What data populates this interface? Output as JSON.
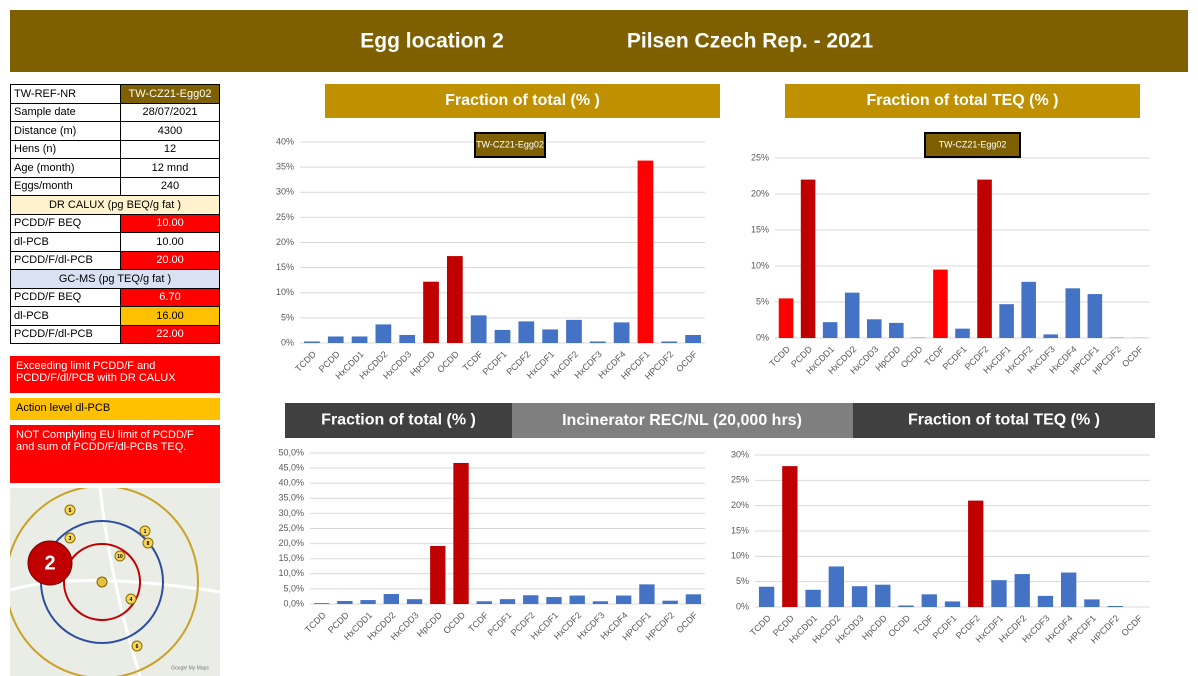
{
  "header": {
    "location": "Egg location 2",
    "place": "Pilsen Czech Rep. - 2021"
  },
  "table": {
    "rows": [
      [
        "TW-REF-NR",
        "TW-CZ21-Egg02"
      ],
      [
        "Sample date",
        "28/07/2021"
      ],
      [
        "Distance (m)",
        "4300"
      ],
      [
        "Hens (n)",
        "12"
      ],
      [
        "Age (month)",
        "12 mnd"
      ],
      [
        "Eggs/month",
        "240"
      ],
      [
        "DR CALUX (pg BEQ/g fat )"
      ],
      [
        "PCDD/F BEQ",
        "10.00"
      ],
      [
        "dl-PCB",
        "10.00"
      ],
      [
        "PCDD/F/dl-PCB",
        "20.00"
      ],
      [
        "GC-MS (pg TEQ/g fat )"
      ],
      [
        "PCDD/F BEQ",
        "6.70"
      ],
      [
        "dl-PCB",
        "16.00"
      ],
      [
        "PCDD/F/dl-PCB",
        "22.00"
      ]
    ]
  },
  "legend": [
    "Exceeding limit PCDD/F and PCDD/F/dl/PCB with DR CALUX",
    "Action level dl-PCB",
    "NOT Complyling EU limit of PCDD/F and sum of  PCDD/F/dl-PCBs TEQ."
  ],
  "map": {
    "location": "2",
    "markers": [
      "5",
      "3",
      "1",
      "8",
      "10",
      "4",
      "6"
    ],
    "credit": "Google My Maps"
  },
  "banner_middle": "Incinerator REC/NL (20,000 hrs)",
  "chart_data": [
    {
      "type": "bar",
      "title": "Fraction of total (% )",
      "annotation": "TW-CZ21-Egg02",
      "categories": [
        "TCDD",
        "PCDD",
        "HxCDD1",
        "HxCDD2",
        "HxCDD3",
        "HpCDD",
        "OCDD",
        "TCDF",
        "PCDF1",
        "PCDF2",
        "HxCDF1",
        "HxCDF2",
        "HxCDF3",
        "HxCDF4",
        "HPCDF1",
        "HPCDF2",
        "OCDF"
      ],
      "values": [
        0.3,
        1.3,
        1.3,
        3.7,
        1.6,
        12.2,
        17.3,
        5.5,
        2.6,
        4.3,
        2.7,
        4.6,
        0.3,
        4.1,
        36.3,
        0.3,
        1.6
      ],
      "colors": [
        "#4472c4",
        "#4472c4",
        "#4472c4",
        "#4472c4",
        "#4472c4",
        "#c00000",
        "#c00000",
        "#4472c4",
        "#4472c4",
        "#4472c4",
        "#4472c4",
        "#4472c4",
        "#4472c4",
        "#4472c4",
        "#ff0000",
        "#4472c4",
        "#4472c4"
      ],
      "ylim": [
        0,
        40
      ],
      "yticks": [
        {
          "value": 0,
          "label": "0%"
        },
        {
          "value": 5,
          "label": "5%"
        },
        {
          "value": 10,
          "label": "10%"
        },
        {
          "value": 15,
          "label": "15%"
        },
        {
          "value": 20,
          "label": "20%"
        },
        {
          "value": 25,
          "label": "25%"
        },
        {
          "value": 30,
          "label": "30%"
        },
        {
          "value": 35,
          "label": "35%"
        },
        {
          "value": 40,
          "label": "40%"
        }
      ],
      "grid": true
    },
    {
      "type": "bar",
      "title": "Fraction of total TEQ (% )",
      "annotation": "TW-CZ21-Egg02",
      "categories": [
        "TCDD",
        "PCDD",
        "HxCDD1",
        "HxCDD2",
        "HxCDD3",
        "HpCDD",
        "OCDD",
        "TCDF",
        "PCDF1",
        "PCDF2",
        "HxCDF1",
        "HxCDF2",
        "HxCDF3",
        "HxCDF4",
        "HPCDF1",
        "HPCDF2",
        "OCDF"
      ],
      "values": [
        5.5,
        22,
        2.2,
        6.3,
        2.6,
        2.1,
        0.05,
        9.5,
        1.3,
        22,
        4.7,
        7.8,
        0.5,
        6.9,
        6.1,
        0.05,
        0.02
      ],
      "colors": [
        "#ff0000",
        "#c00000",
        "#4472c4",
        "#4472c4",
        "#4472c4",
        "#4472c4",
        "#4472c4",
        "#ff0000",
        "#4472c4",
        "#c00000",
        "#4472c4",
        "#4472c4",
        "#4472c4",
        "#4472c4",
        "#4472c4",
        "#4472c4",
        "#4472c4"
      ],
      "ylim": [
        0,
        25
      ],
      "yticks": [
        {
          "value": 0,
          "label": "0%"
        },
        {
          "value": 5,
          "label": "5%"
        },
        {
          "value": 10,
          "label": "10%"
        },
        {
          "value": 15,
          "label": "15%"
        },
        {
          "value": 20,
          "label": "20%"
        },
        {
          "value": 25,
          "label": "25%"
        }
      ],
      "grid": true
    },
    {
      "type": "bar",
      "title": "Fraction of total (% )",
      "categories": [
        "TCDD",
        "PCDD",
        "HxCDD1",
        "HxCDD2",
        "HxCDD3",
        "HpCDD",
        "OCDD",
        "TCDF",
        "PCDF1",
        "PCDF2",
        "HxCDF1",
        "HxCDF2",
        "HxCDF3",
        "HxCDF4",
        "HPCDF1",
        "HPCDF2",
        "OCDF"
      ],
      "values": [
        0.3,
        1,
        1.3,
        3.3,
        1.6,
        19.2,
        46.7,
        0.9,
        1.6,
        2.9,
        2.3,
        2.8,
        0.9,
        2.8,
        6.5,
        1.1,
        3.2
      ],
      "colors": [
        "#4472c4",
        "#4472c4",
        "#4472c4",
        "#4472c4",
        "#4472c4",
        "#c00000",
        "#c00000",
        "#4472c4",
        "#4472c4",
        "#4472c4",
        "#4472c4",
        "#4472c4",
        "#4472c4",
        "#4472c4",
        "#4472c4",
        "#4472c4",
        "#4472c4"
      ],
      "ylim": [
        0,
        50
      ],
      "yticks": [
        {
          "value": 0,
          "label": "0,0%"
        },
        {
          "value": 5,
          "label": "5,0%"
        },
        {
          "value": 10,
          "label": "10,0%"
        },
        {
          "value": 15,
          "label": "15,0%"
        },
        {
          "value": 20,
          "label": "20,0%"
        },
        {
          "value": 25,
          "label": "25,0%"
        },
        {
          "value": 30,
          "label": "30,0%"
        },
        {
          "value": 35,
          "label": "35,0%"
        },
        {
          "value": 40,
          "label": "40,0%"
        },
        {
          "value": 45,
          "label": "45,0%"
        },
        {
          "value": 50,
          "label": "50,0%"
        }
      ],
      "grid": true
    },
    {
      "type": "bar",
      "title": "Fraction of total TEQ (% )",
      "categories": [
        "TCDD",
        "PCDD",
        "HxCDD1",
        "HxCDD2",
        "HxCDD3",
        "HpCDD",
        "OCDD",
        "TCDF",
        "PCDF1",
        "PCDF2",
        "HxCDF1",
        "HxCDF2",
        "HxCDF3",
        "HxCDF4",
        "HPCDF1",
        "HPCDF2",
        "OCDF"
      ],
      "values": [
        4,
        27.8,
        3.4,
        8,
        4.1,
        4.4,
        0.3,
        2.5,
        1.1,
        21,
        5.3,
        6.5,
        2.2,
        6.8,
        1.5,
        0.2,
        0
      ],
      "colors": [
        "#4472c4",
        "#c00000",
        "#4472c4",
        "#4472c4",
        "#4472c4",
        "#4472c4",
        "#4472c4",
        "#4472c4",
        "#4472c4",
        "#c00000",
        "#4472c4",
        "#4472c4",
        "#4472c4",
        "#4472c4",
        "#4472c4",
        "#4472c4",
        "#4472c4"
      ],
      "ylim": [
        0,
        30
      ],
      "yticks": [
        {
          "value": 0,
          "label": "0%"
        },
        {
          "value": 5,
          "label": "5%"
        },
        {
          "value": 10,
          "label": "10%"
        },
        {
          "value": 15,
          "label": "15%"
        },
        {
          "value": 20,
          "label": "20%"
        },
        {
          "value": 25,
          "label": "25%"
        },
        {
          "value": 30,
          "label": "30%"
        }
      ],
      "grid": true
    }
  ]
}
